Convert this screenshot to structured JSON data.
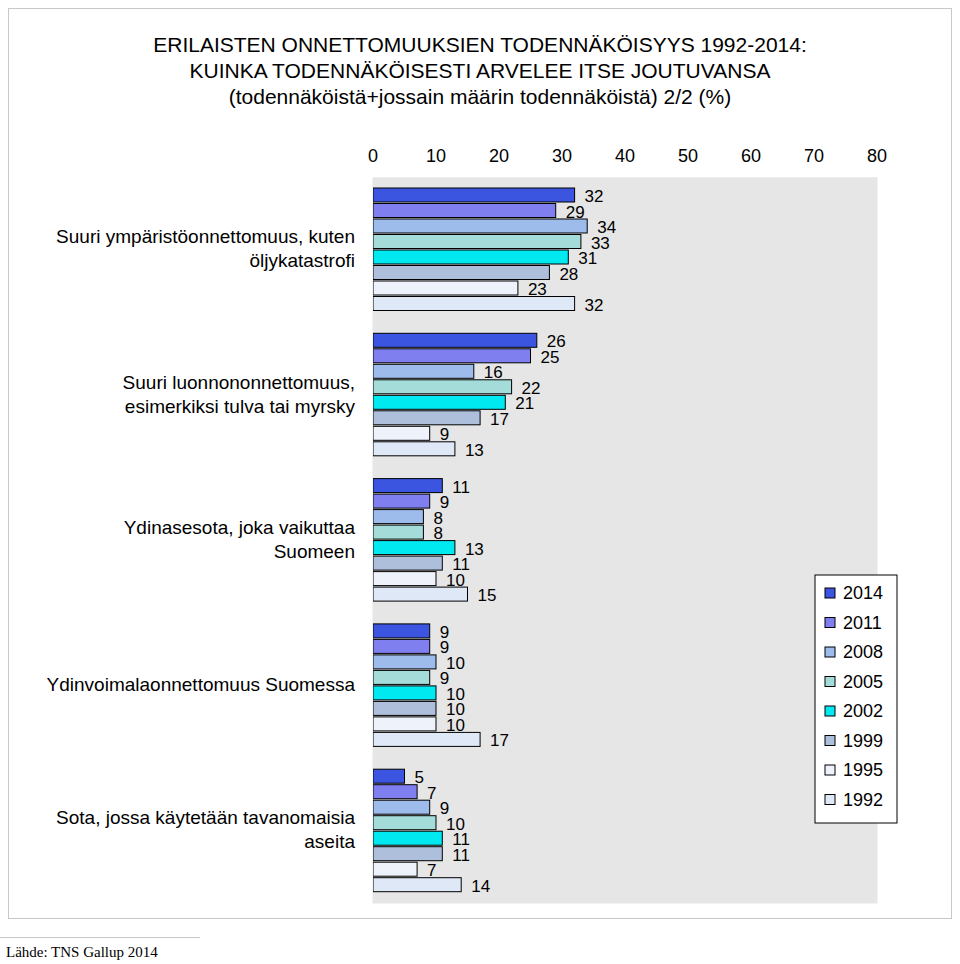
{
  "chart_data": {
    "type": "bar",
    "orientation": "horizontal",
    "title": [
      "ERILAISTEN ONNETTOMUUKSIEN TODENNÄKÖISYYS 1992-2014:",
      "KUINKA TODENNÄKÖISESTI ARVELEE ITSE JOUTUVANSA"
    ],
    "subtitle": "(todennäköistä+jossain määrin todennäköistä) 2/2 (%)",
    "source": "Lähde: TNS Gallup 2014",
    "categories": [
      "Suuri ympäristöonnettomuus, kuten\nöljykatastrofi",
      "Suuri luonnononnettomuus,\nesimerkiksi tulva tai myrsky",
      "Ydinasesota, joka vaikuttaa\nSuomeen",
      "Ydinvoimalaonnettomuus Suomessa",
      "Sota, jossa käytetään tavanomaisia\naseita"
    ],
    "series": [
      {
        "name": "2014",
        "color": "#3b55e0",
        "values": [
          32,
          26,
          11,
          9,
          5
        ]
      },
      {
        "name": "2011",
        "color": "#7f7ff0",
        "values": [
          29,
          25,
          9,
          9,
          7
        ]
      },
      {
        "name": "2008",
        "color": "#9dbcec",
        "values": [
          34,
          16,
          8,
          10,
          9
        ]
      },
      {
        "name": "2005",
        "color": "#a3dcd8",
        "values": [
          33,
          22,
          8,
          9,
          10
        ]
      },
      {
        "name": "2002",
        "color": "#00e8f0",
        "values": [
          31,
          21,
          13,
          10,
          11
        ]
      },
      {
        "name": "1999",
        "color": "#aebfdc",
        "values": [
          28,
          17,
          11,
          10,
          11
        ]
      },
      {
        "name": "1995",
        "color": "#eef3fb",
        "values": [
          23,
          9,
          10,
          10,
          7
        ]
      },
      {
        "name": "1992",
        "color": "#dfe8f6",
        "values": [
          32,
          13,
          15,
          17,
          14
        ]
      }
    ],
    "xlim": [
      0,
      80
    ],
    "xticks": [
      0,
      10,
      20,
      30,
      40,
      50,
      60,
      70,
      80
    ],
    "grid": false,
    "data_labels": true,
    "legend": "right"
  }
}
